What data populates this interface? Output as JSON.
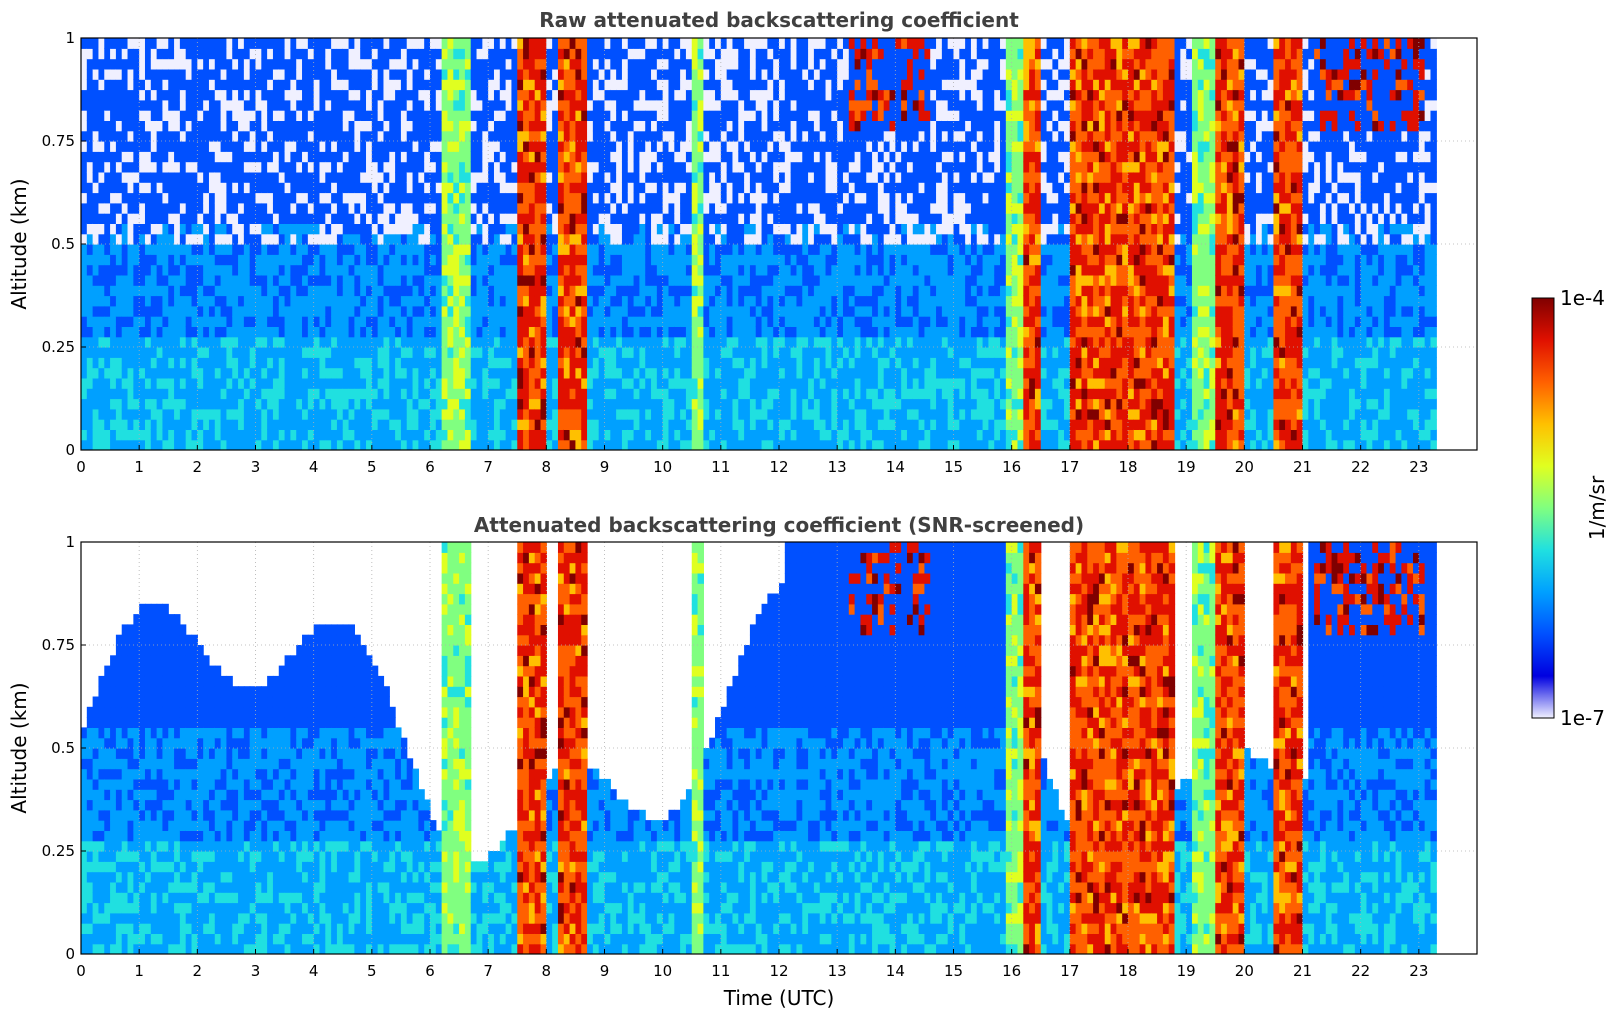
{
  "chart_data": [
    {
      "type": "heatmap",
      "title": "Raw attenuated backscattering coefficient",
      "xlabel": "",
      "ylabel": "Altitude (km)",
      "xlim": [
        0,
        24
      ],
      "ylim": [
        0,
        1
      ],
      "x_ticks": [
        0,
        1,
        2,
        3,
        4,
        5,
        6,
        7,
        8,
        9,
        10,
        11,
        12,
        13,
        14,
        15,
        16,
        17,
        18,
        19,
        20,
        21,
        22,
        23
      ],
      "y_ticks": [
        0,
        0.25,
        0.5,
        0.75,
        1
      ],
      "y_tick_labels": [
        "0",
        "0.25",
        "0.5",
        "0.75",
        "1"
      ],
      "grid": true,
      "data_end_x": 23.3,
      "colormap": "jet",
      "color_scale": "log",
      "clim": [
        1e-07,
        0.0001
      ]
    },
    {
      "type": "heatmap",
      "title": "Attenuated backscattering coefficient (SNR-screened)",
      "xlabel": "Time (UTC)",
      "ylabel": "Altitude (km)",
      "xlim": [
        0,
        24
      ],
      "ylim": [
        0,
        1
      ],
      "x_ticks": [
        0,
        1,
        2,
        3,
        4,
        5,
        6,
        7,
        8,
        9,
        10,
        11,
        12,
        13,
        14,
        15,
        16,
        17,
        18,
        19,
        20,
        21,
        22,
        23
      ],
      "y_ticks": [
        0,
        0.25,
        0.5,
        0.75,
        1
      ],
      "y_tick_labels": [
        "0",
        "0.25",
        "0.5",
        "0.75",
        "1"
      ],
      "grid": true,
      "data_end_x": 23.3,
      "colormap": "jet",
      "color_scale": "log",
      "clim": [
        1e-07,
        0.0001
      ]
    }
  ],
  "colorbar": {
    "label": "1/m/sr",
    "max_label": "1e-4",
    "min_label": "1e-7",
    "colors": [
      "#f0f0ff",
      "#0000e0",
      "#0050ff",
      "#00a0ff",
      "#20e0e0",
      "#80ff80",
      "#e0ff20",
      "#ffc000",
      "#ff6000",
      "#e01000",
      "#800000"
    ]
  },
  "features": {
    "cloud_bands": [
      [
        7.45,
        7.95
      ],
      [
        8.15,
        8.65
      ],
      [
        16.2,
        16.45
      ],
      [
        17.0,
        17.9
      ],
      [
        18.0,
        18.75
      ],
      [
        19.5,
        19.9
      ],
      [
        20.5,
        20.95
      ]
    ],
    "aerosol_bands": [
      [
        6.15,
        6.6
      ],
      [
        10.5,
        10.65
      ],
      [
        15.85,
        16.1
      ],
      [
        19.05,
        19.45
      ]
    ],
    "high_cloud_patches": [
      [
        13.2,
        14.6
      ],
      [
        21.2,
        23.0
      ]
    ]
  }
}
